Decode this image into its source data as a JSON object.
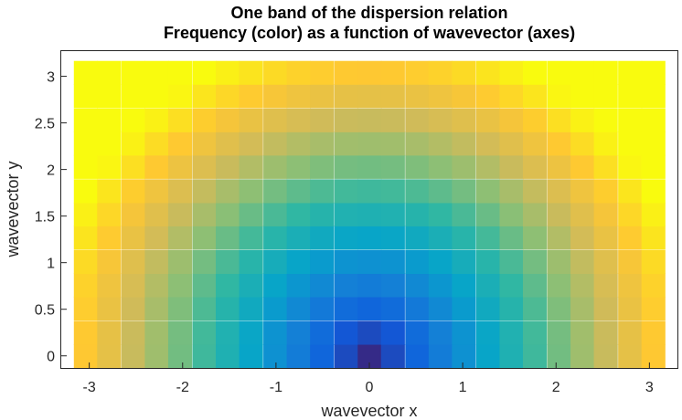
{
  "chart_data": {
    "type": "heatmap",
    "title": [
      "One band of the dispersion relation",
      "Frequency (color) as a function of wavevector (axes)"
    ],
    "xlabel": "wavevector x",
    "ylabel": "wavevector y",
    "xlim": [
      -3.3,
      3.3
    ],
    "ylim": [
      -0.13,
      3.27
    ],
    "xticks": [
      -3,
      -2,
      -1,
      0,
      1,
      2,
      3
    ],
    "yticks": [
      0,
      0.5,
      1,
      1.5,
      2,
      2.5,
      3
    ],
    "xtick_labels": [
      "-3",
      "-2",
      "-1",
      "0",
      "1",
      "2",
      "3"
    ],
    "ytick_labels": [
      "0",
      "0.5",
      "1",
      "1.5",
      "2",
      "2.5",
      "3"
    ],
    "x": [
      -3.04,
      -2.79,
      -2.53,
      -2.28,
      -2.03,
      -1.77,
      -1.52,
      -1.27,
      -1.01,
      -0.76,
      -0.51,
      -0.25,
      0,
      0.25,
      0.51,
      0.76,
      1.01,
      1.27,
      1.52,
      1.77,
      2.03,
      2.28,
      2.53,
      2.79,
      3.04
    ],
    "y": [
      0,
      0.25,
      0.51,
      0.76,
      1.01,
      1.27,
      1.52,
      1.77,
      2.03,
      2.28,
      2.53,
      2.79,
      3.04
    ],
    "colormap": "parula",
    "colormap_stops": [
      "#352a87",
      "#0f5cdd",
      "#1481d6",
      "#06a4ca",
      "#2eb7a4",
      "#87bf77",
      "#d1bb59",
      "#fec832",
      "#f9fb0e"
    ],
    "z_note": "frequency = |k| with tiles of k past the band edge saturating to yellow",
    "k_saturate": 3.5,
    "grid": false,
    "colorbar": false
  }
}
